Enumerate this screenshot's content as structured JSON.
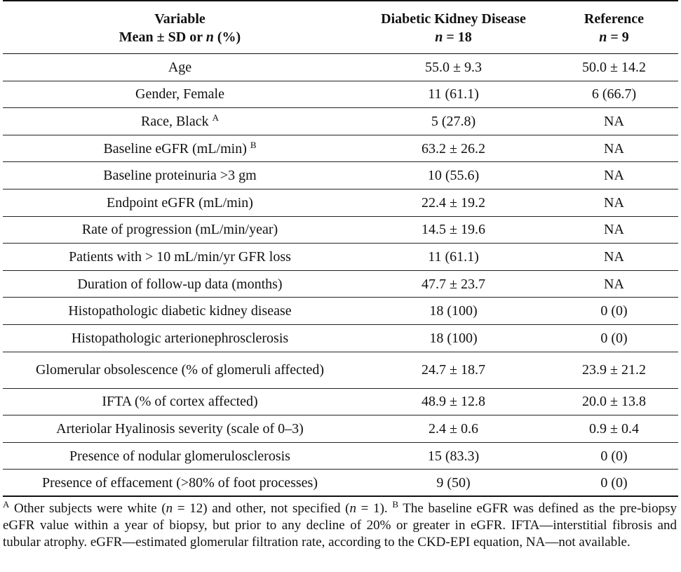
{
  "header": {
    "col1_line1": "Variable",
    "col1_line2_prefix": "Mean ± SD or ",
    "col1_line2_n": "n",
    "col1_line2_suffix": " (%)",
    "col2_line1": "Diabetic Kidney Disease",
    "col2_n": "n",
    "col2_count": " = 18",
    "col3_line1": "Reference",
    "col3_n": "n",
    "col3_count": " = 9"
  },
  "rows": [
    {
      "variable": "Age",
      "sup": "",
      "dkd": "55.0 ± 9.3",
      "ref": "50.0 ± 14.2"
    },
    {
      "variable": "Gender, Female",
      "sup": "",
      "dkd": "11 (61.1)",
      "ref": "6 (66.7)"
    },
    {
      "variable": "Race, Black ",
      "sup": "A",
      "dkd": "5 (27.8)",
      "ref": "NA"
    },
    {
      "variable": "Baseline eGFR (mL/min) ",
      "sup": "B",
      "dkd": "63.2 ± 26.2",
      "ref": "NA"
    },
    {
      "variable": "Baseline proteinuria >3 gm",
      "sup": "",
      "dkd": "10 (55.6)",
      "ref": "NA"
    },
    {
      "variable": "Endpoint eGFR (mL/min)",
      "sup": "",
      "dkd": "22.4 ± 19.2",
      "ref": "NA"
    },
    {
      "variable": "Rate of progression (mL/min/year)",
      "sup": "",
      "dkd": "14.5 ± 19.6",
      "ref": "NA"
    },
    {
      "variable": "Patients with > 10 mL/min/yr GFR loss",
      "sup": "",
      "dkd": "11 (61.1)",
      "ref": "NA"
    },
    {
      "variable": "Duration of follow-up data (months)",
      "sup": "",
      "dkd": "47.7 ± 23.7",
      "ref": "NA"
    },
    {
      "variable": "Histopathologic diabetic kidney disease",
      "sup": "",
      "dkd": "18 (100)",
      "ref": "0 (0)"
    },
    {
      "variable": "Histopathologic arterionephrosclerosis",
      "sup": "",
      "dkd": "18 (100)",
      "ref": "0 (0)"
    },
    {
      "variable": "Glomerular obsolescence (% of glomeruli affected)",
      "sup": "",
      "dkd": "24.7 ± 18.7",
      "ref": "23.9 ± 21.2"
    },
    {
      "variable": "IFTA (% of cortex affected)",
      "sup": "",
      "dkd": "48.9 ± 12.8",
      "ref": "20.0 ± 13.8"
    },
    {
      "variable": "Arteriolar Hyalinosis severity (scale of 0–3)",
      "sup": "",
      "dkd": "2.4 ± 0.6",
      "ref": "0.9 ± 0.4"
    },
    {
      "variable": "Presence of nodular glomerulosclerosis",
      "sup": "",
      "dkd": "15 (83.3)",
      "ref": "0 (0)"
    },
    {
      "variable": "Presence of effacement (>80% of foot processes)",
      "sup": "",
      "dkd": "9 (50)",
      "ref": "0 (0)"
    }
  ],
  "footnote": {
    "sup_a": "A",
    "part1": " Other subjects were white (",
    "n1": "n",
    "part2": " = 12) and other, not specified (",
    "n2": "n",
    "part3": " = 1). ",
    "sup_b": "B",
    "part4": " The baseline eGFR was defined as the pre-biopsy eGFR value within a year of biopsy, but prior to any decline of 20% or greater in eGFR. IFTA—interstitial fibrosis and tubular atrophy. eGFR—estimated glomerular filtration rate, according to the CKD-EPI equation, NA—not available."
  }
}
